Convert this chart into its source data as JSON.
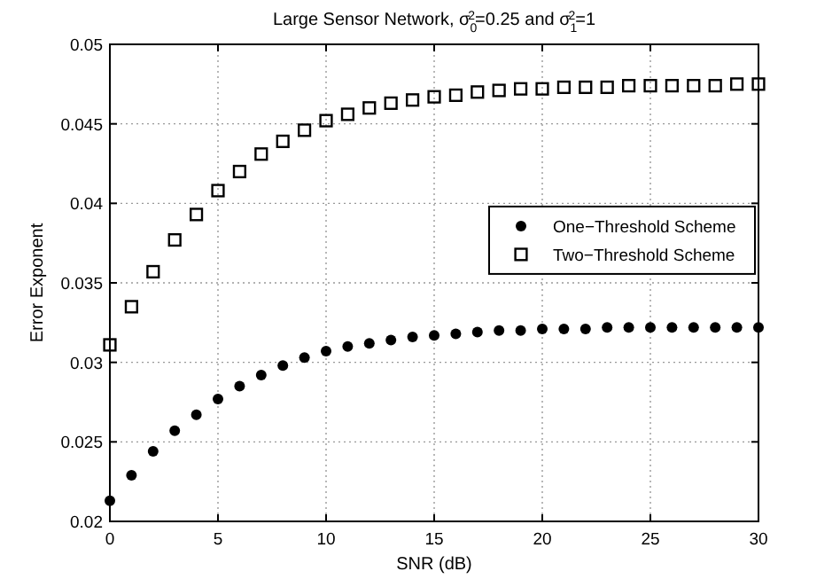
{
  "chart_data": {
    "type": "scatter",
    "title": "Large Sensor Network, σ$_{0}$$^{2}$=0.25 and σ$_{1}$$^{2}$=1",
    "xlabel": "SNR (dB)",
    "ylabel": "Error Exponent",
    "x": [
      0,
      1,
      2,
      3,
      4,
      5,
      6,
      7,
      8,
      9,
      10,
      11,
      12,
      13,
      14,
      15,
      16,
      17,
      18,
      19,
      20,
      21,
      22,
      23,
      24,
      25,
      26,
      27,
      28,
      29,
      30
    ],
    "series": [
      {
        "name": "One−Threshold Scheme",
        "color": "#000000",
        "marker": "circle",
        "values": [
          0.0213,
          0.0229,
          0.0244,
          0.0257,
          0.0267,
          0.0277,
          0.0285,
          0.0292,
          0.0298,
          0.0303,
          0.0307,
          0.031,
          0.0312,
          0.0314,
          0.0316,
          0.0317,
          0.0318,
          0.0319,
          0.032,
          0.032,
          0.0321,
          0.0321,
          0.0321,
          0.0322,
          0.0322,
          0.0322,
          0.0322,
          0.0322,
          0.0322,
          0.0322,
          0.0322
        ]
      },
      {
        "name": "Two−Threshold Scheme",
        "color": "#000000",
        "marker": "square",
        "values": [
          0.0311,
          0.0335,
          0.0357,
          0.0377,
          0.0393,
          0.0408,
          0.042,
          0.0431,
          0.0439,
          0.0446,
          0.0452,
          0.0456,
          0.046,
          0.0463,
          0.0465,
          0.0467,
          0.0468,
          0.047,
          0.0471,
          0.0472,
          0.0472,
          0.0473,
          0.0473,
          0.0473,
          0.0474,
          0.0474,
          0.0474,
          0.0474,
          0.0474,
          0.0475,
          0.0475
        ]
      }
    ],
    "xlim": [
      0,
      30
    ],
    "xticks": [
      0,
      5,
      10,
      15,
      20,
      25,
      30
    ],
    "ylim": [
      0.02,
      0.05
    ],
    "yticks": [
      0.02,
      0.025,
      0.03,
      0.035,
      0.04,
      0.045,
      0.05
    ],
    "grid": true,
    "legend": "right"
  }
}
